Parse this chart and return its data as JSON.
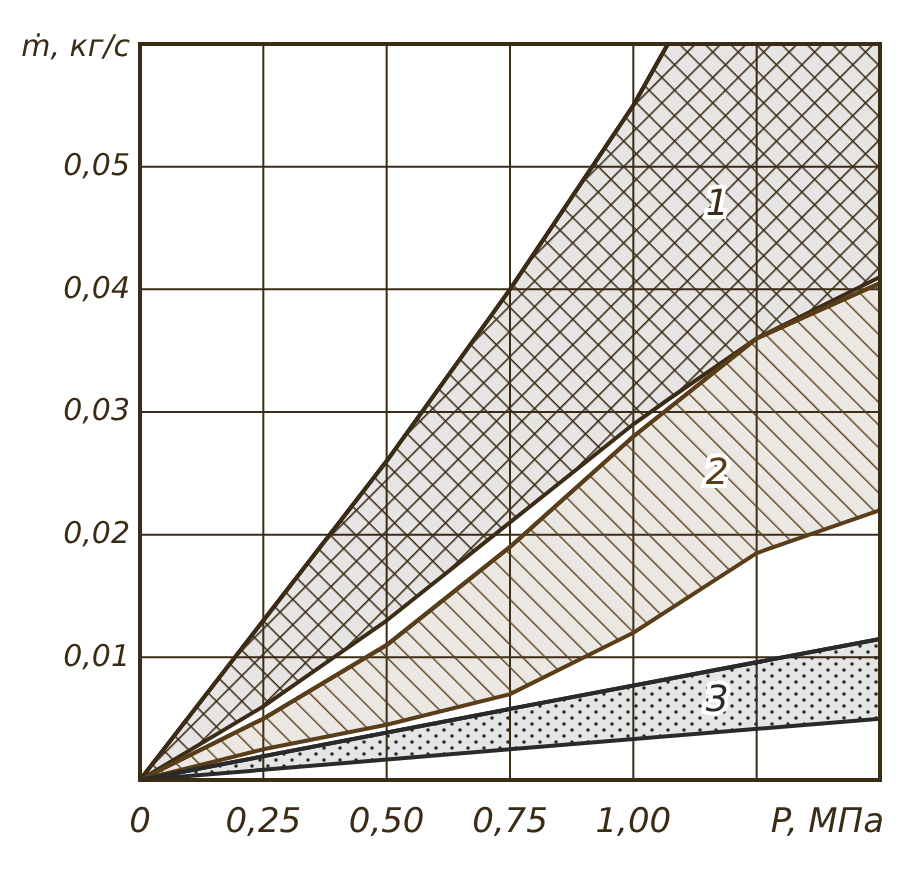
{
  "chart_data": {
    "type": "line",
    "xlabel": "P, МПа",
    "ylabel": "ṁ, кг/с",
    "xlim": [
      0,
      1.5
    ],
    "ylim": [
      0,
      0.06
    ],
    "xticks": [
      0,
      {
        "value": 0.25,
        "label": "0,25"
      },
      {
        "value": 0.5,
        "label": "0,50"
      },
      {
        "value": 0.75,
        "label": "0,75"
      },
      {
        "value": 1,
        "label": "1,00"
      },
      {
        "value": 1.25,
        "label": null
      },
      {
        "value": 1.5,
        "label": null
      }
    ],
    "yticks": [
      {
        "value": 0,
        "label": null
      },
      {
        "value": 0.01,
        "label": "0,01"
      },
      {
        "value": 0.02,
        "label": "0,02"
      },
      {
        "value": 0.03,
        "label": "0,03"
      },
      {
        "value": 0.04,
        "label": "0,04"
      },
      {
        "value": 0.05,
        "label": "0,05"
      },
      {
        "value": 0.06,
        "label": null
      }
    ],
    "grid": true,
    "series": [
      {
        "name": "1",
        "color": "#3a2c16",
        "x": [
          0,
          0.25,
          0.5,
          0.75,
          1,
          1.07,
          1.25,
          1.5
        ],
        "values": [
          0,
          0.013,
          0.026,
          0.04,
          0.055,
          0.06,
          0.06,
          0.06
        ],
        "upper": [
          0,
          0.013,
          0.026,
          0.04,
          0.055,
          0.06,
          0.06,
          0.06
        ],
        "lower": [
          0,
          0.006,
          0.013,
          0.021,
          0.029,
          0.031,
          0.036,
          0.041
        ]
      },
      {
        "name": "2",
        "color": "#5a3e1a",
        "x": [
          0,
          0.25,
          0.5,
          0.75,
          1,
          1.25,
          1.5
        ],
        "values": [
          0,
          0.005,
          0.011,
          0.019,
          0.028,
          0.036,
          0.0405
        ],
        "upper": [
          0,
          0.005,
          0.011,
          0.019,
          0.028,
          0.036,
          0.0405
        ],
        "lower": [
          0,
          0.0025,
          0.0045,
          0.007,
          0.012,
          0.0185,
          0.022
        ]
      },
      {
        "name": "3",
        "color": "#2a2a2a",
        "x": [
          0,
          0.75,
          1.5
        ],
        "values": [
          0,
          0.0058,
          0.0115
        ],
        "upper": [
          0,
          0.0058,
          0.0115
        ],
        "lower": [
          0,
          0.0025,
          0.005
        ]
      }
    ]
  }
}
